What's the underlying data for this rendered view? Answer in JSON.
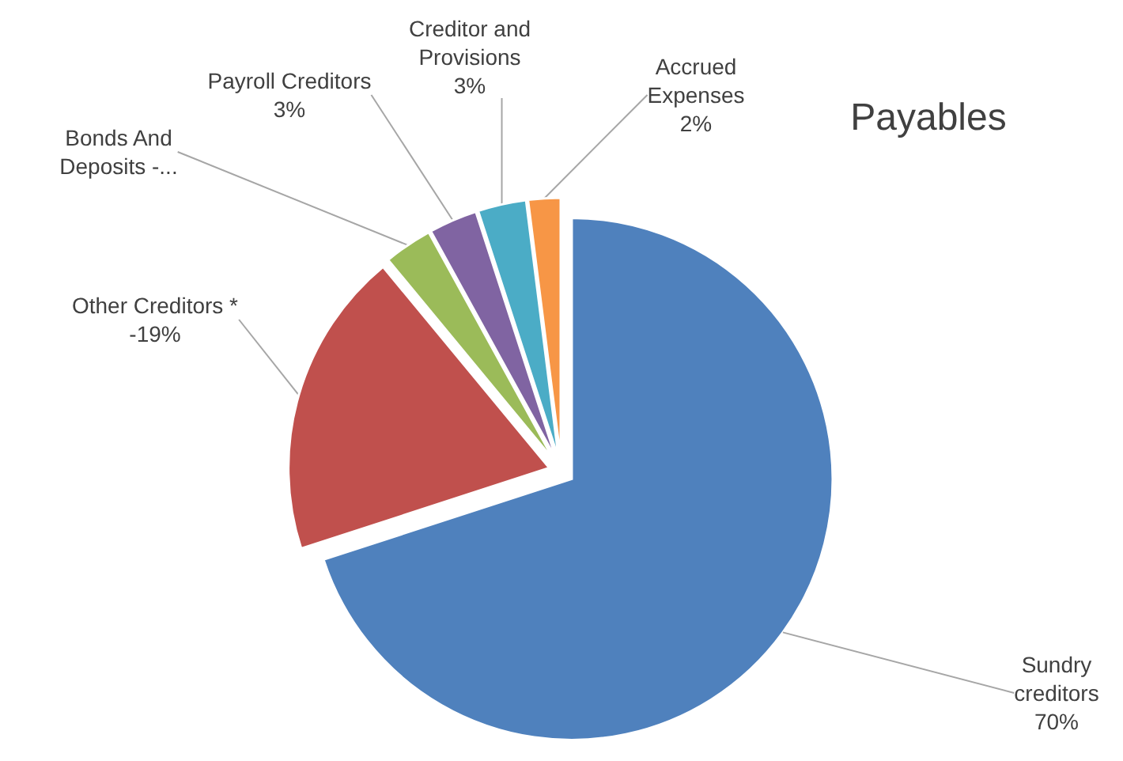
{
  "chart_data": {
    "type": "pie",
    "title": "Payables",
    "categories": [
      "Sundry creditors",
      "Other Creditors * -",
      "Bonds And Deposits -...",
      "Payroll Creditors",
      "Creditor and Provisions",
      "Accrued Expenses"
    ],
    "values": [
      70,
      19,
      3,
      3,
      3,
      2
    ],
    "value_labels": [
      "70%",
      "19%",
      null,
      "3%",
      "3%",
      "2%"
    ],
    "colors": [
      "#4f81bd",
      "#c0504d",
      "#9bbb59",
      "#8064a2",
      "#4bacc6",
      "#f79646"
    ],
    "legend": false
  }
}
